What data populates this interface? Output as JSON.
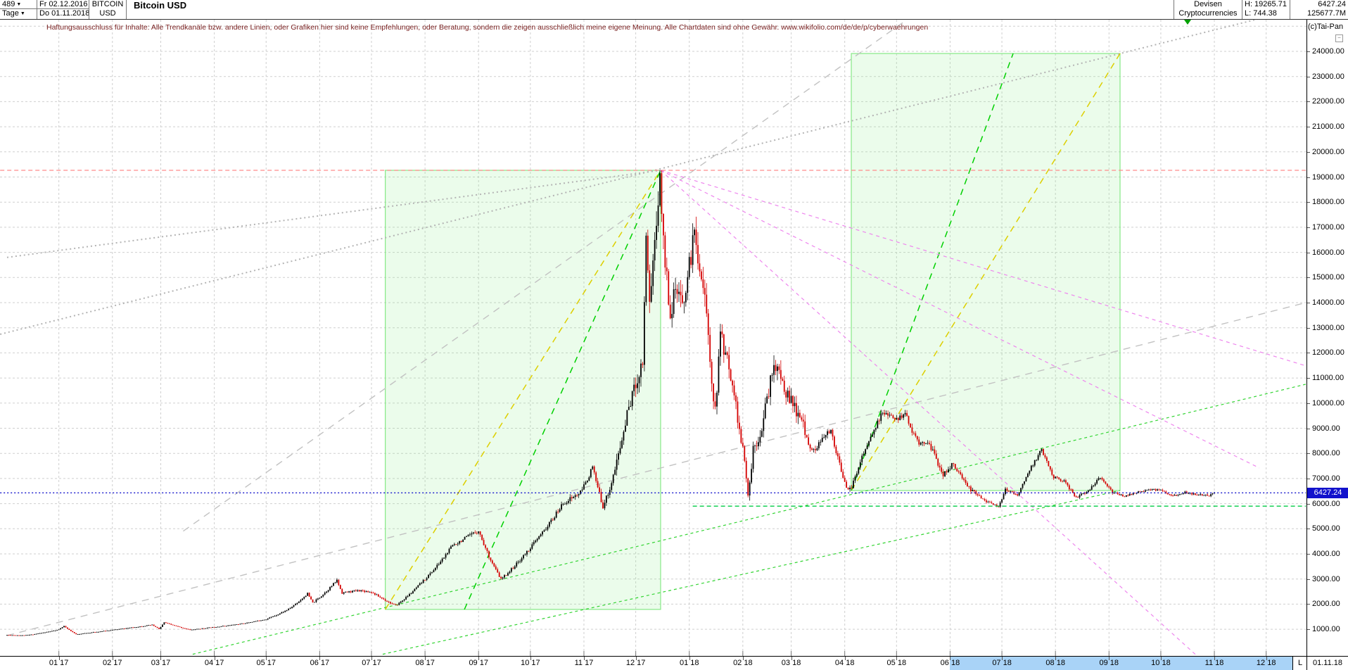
{
  "header": {
    "bars_count": "489",
    "bars_unit": "Tage",
    "date_from": "Fr 02.12.2016",
    "date_to": "Do 01.11.2018",
    "symbol_line1": "BITCOIN",
    "symbol_line2": "USD",
    "title": "Bitcoin USD",
    "market": "Devisen",
    "market2": "Cryptocurrencies",
    "high_label": "H: 19265.71",
    "low_label": "L: 744.38",
    "last_price": "6427.24",
    "volume": "125677.7M"
  },
  "disclaimer": "Haftungsausschluss für Inhalte: Alle Trendkanäle bzw. andere Linien, oder Grafiken hier sind keine Empfehlungen, oder Beratung, sondern die zeigen ausschließlich meine eigene Meinung. Alle Chartdaten sind ohne Gewähr.  www.wikifolio.com/de/de/p/cyberwaehrungen",
  "copyright": "(c)Tai-Pan",
  "collapse_icon": "−",
  "axis": {
    "price_ticks": [
      24000,
      23000,
      22000,
      21000,
      20000,
      19000,
      18000,
      17000,
      16000,
      15000,
      14000,
      13000,
      12000,
      11000,
      10000,
      9000,
      8000,
      7000,
      6000,
      5000,
      4000,
      3000,
      2000,
      1000
    ],
    "last_price_tag": "6427.24",
    "last_marker": "L",
    "last_date": "01.11.18",
    "months": [
      {
        "label": "01 17",
        "d": 30
      },
      {
        "label": "02 17",
        "d": 61
      },
      {
        "label": "03 17",
        "d": 89
      },
      {
        "label": "04 17",
        "d": 120
      },
      {
        "label": "05 17",
        "d": 150
      },
      {
        "label": "06 17",
        "d": 181
      },
      {
        "label": "07 17",
        "d": 211
      },
      {
        "label": "08 17",
        "d": 242
      },
      {
        "label": "09 17",
        "d": 273
      },
      {
        "label": "10 17",
        "d": 303
      },
      {
        "label": "11 17",
        "d": 334
      },
      {
        "label": "12 17",
        "d": 364
      },
      {
        "label": "01 18",
        "d": 395
      },
      {
        "label": "02 18",
        "d": 426
      },
      {
        "label": "03 18",
        "d": 454
      },
      {
        "label": "04 18",
        "d": 485
      },
      {
        "label": "05 18",
        "d": 515
      },
      {
        "label": "06 18",
        "d": 546
      },
      {
        "label": "07 18",
        "d": 576
      },
      {
        "label": "08 18",
        "d": 607
      },
      {
        "label": "09 18",
        "d": 638
      },
      {
        "label": "10 18",
        "d": 668
      },
      {
        "label": "11 18",
        "d": 699
      },
      {
        "label": "12 18",
        "d": 729
      }
    ]
  },
  "chart_data": {
    "type": "candlestick",
    "title": "Bitcoin USD",
    "x_start_date": "02.12.2016",
    "x_end_date": "01.11.2018",
    "bars_displayed": 489,
    "high": 19265.71,
    "low": 744.38,
    "last": 6427.24,
    "ylim": [
      0,
      25500
    ],
    "grid": true,
    "up_color": "#000000",
    "down_color": "#d40000",
    "keypoints": [
      {
        "d": 0,
        "p": 770
      },
      {
        "d": 10,
        "p": 755
      },
      {
        "d": 14,
        "p": 785
      },
      {
        "d": 29,
        "p": 965
      },
      {
        "d": 33,
        "p": 1120
      },
      {
        "d": 40,
        "p": 800
      },
      {
        "d": 60,
        "p": 965
      },
      {
        "d": 84,
        "p": 1175
      },
      {
        "d": 88,
        "p": 1010
      },
      {
        "d": 91,
        "p": 1270
      },
      {
        "d": 106,
        "p": 975
      },
      {
        "d": 119,
        "p": 1080
      },
      {
        "d": 135,
        "p": 1210
      },
      {
        "d": 150,
        "p": 1400
      },
      {
        "d": 163,
        "p": 1800
      },
      {
        "d": 174,
        "p": 2420
      },
      {
        "d": 177,
        "p": 2050
      },
      {
        "d": 191,
        "p": 2950
      },
      {
        "d": 194,
        "p": 2450
      },
      {
        "d": 204,
        "p": 2550
      },
      {
        "d": 211,
        "p": 2480
      },
      {
        "d": 225,
        "p": 1940
      },
      {
        "d": 240,
        "p": 2860
      },
      {
        "d": 258,
        "p": 4350
      },
      {
        "d": 273,
        "p": 4930
      },
      {
        "d": 286,
        "p": 2990
      },
      {
        "d": 304,
        "p": 4340
      },
      {
        "d": 322,
        "p": 6020
      },
      {
        "d": 332,
        "p": 6440
      },
      {
        "d": 339,
        "p": 7440
      },
      {
        "d": 345,
        "p": 5900
      },
      {
        "d": 349,
        "p": 6600
      },
      {
        "d": 360,
        "p": 9900
      },
      {
        "d": 368,
        "p": 11700
      },
      {
        "d": 370,
        "p": 16800
      },
      {
        "d": 372,
        "p": 14100
      },
      {
        "d": 378,
        "p": 19100
      },
      {
        "d": 380,
        "p": 16500
      },
      {
        "d": 384,
        "p": 13600
      },
      {
        "d": 387,
        "p": 14500
      },
      {
        "d": 391,
        "p": 13850
      },
      {
        "d": 398,
        "p": 16800
      },
      {
        "d": 404,
        "p": 14300
      },
      {
        "d": 410,
        "p": 9650
      },
      {
        "d": 413,
        "p": 12800
      },
      {
        "d": 420,
        "p": 10900
      },
      {
        "d": 427,
        "p": 7700
      },
      {
        "d": 429,
        "p": 6250
      },
      {
        "d": 432,
        "p": 8200
      },
      {
        "d": 436,
        "p": 8800
      },
      {
        "d": 444,
        "p": 11650
      },
      {
        "d": 452,
        "p": 10300
      },
      {
        "d": 460,
        "p": 9300
      },
      {
        "d": 466,
        "p": 8050
      },
      {
        "d": 477,
        "p": 8950
      },
      {
        "d": 483,
        "p": 7300
      },
      {
        "d": 487,
        "p": 6500
      },
      {
        "d": 489,
        "p": 6650
      },
      {
        "d": 495,
        "p": 7900
      },
      {
        "d": 502,
        "p": 8900
      },
      {
        "d": 507,
        "p": 9650
      },
      {
        "d": 514,
        "p": 9300
      },
      {
        "d": 520,
        "p": 9600
      },
      {
        "d": 527,
        "p": 8450
      },
      {
        "d": 534,
        "p": 8400
      },
      {
        "d": 542,
        "p": 7150
      },
      {
        "d": 548,
        "p": 7600
      },
      {
        "d": 555,
        "p": 6750
      },
      {
        "d": 560,
        "p": 6450
      },
      {
        "d": 567,
        "p": 6100
      },
      {
        "d": 574,
        "p": 5850
      },
      {
        "d": 578,
        "p": 6550
      },
      {
        "d": 585,
        "p": 6350
      },
      {
        "d": 592,
        "p": 7350
      },
      {
        "d": 599,
        "p": 8150
      },
      {
        "d": 606,
        "p": 7050
      },
      {
        "d": 612,
        "p": 6900
      },
      {
        "d": 619,
        "p": 6250
      },
      {
        "d": 626,
        "p": 6500
      },
      {
        "d": 633,
        "p": 7050
      },
      {
        "d": 640,
        "p": 6450
      },
      {
        "d": 647,
        "p": 6300
      },
      {
        "d": 654,
        "p": 6450
      },
      {
        "d": 661,
        "p": 6550
      },
      {
        "d": 668,
        "p": 6550
      },
      {
        "d": 675,
        "p": 6300
      },
      {
        "d": 682,
        "p": 6450
      },
      {
        "d": 689,
        "p": 6350
      },
      {
        "d": 696,
        "p": 6320
      },
      {
        "d": 699,
        "p": 6427.24
      }
    ],
    "boxes": [
      {
        "name": "rally-2017-box",
        "d1": 219,
        "d2": 378.4,
        "p_top": 19267,
        "p_bottom": 1790
      },
      {
        "name": "consolidation-2018-box",
        "d1": 488.8,
        "d2": 644.4,
        "p_top": 23916,
        "p_bottom": 6521
      }
    ],
    "trendlines": [
      {
        "name": "gray-dotted-through-peak",
        "d1": -4,
        "p1": 12740,
        "d2": 752,
        "p2": 25766,
        "color": "#b4b4b4",
        "dash": "2,4",
        "w": 2
      },
      {
        "name": "gray-dotted-to-peak",
        "d1": 0,
        "p1": 15800,
        "d2": 378.4,
        "p2": 19267,
        "color": "#b4b4b4",
        "dash": "2,4",
        "w": 2
      },
      {
        "name": "gray-channel-steep",
        "d1": 102,
        "p1": 4904,
        "d2": 521,
        "p2": 25260,
        "color": "#c2c2c2",
        "dash": "10,8",
        "w": 1.4
      },
      {
        "name": "gray-channel-shallow",
        "d1": 0,
        "p1": 750,
        "d2": 752,
        "p2": 14000,
        "color": "#c2c2c2",
        "dash": "10,8",
        "w": 1.4
      },
      {
        "name": "green-support-long",
        "d1": 107.5,
        "p1": 5,
        "d2": 752,
        "p2": 10753,
        "color": "#33d433",
        "dash": "4,4",
        "w": 1.2
      },
      {
        "name": "green-support-2",
        "d1": 217.5,
        "p1": 5,
        "d2": 644.4,
        "p2": 6521,
        "color": "#33d433",
        "dash": "4,4",
        "w": 1.2
      },
      {
        "name": "yellow-diagonal-box1",
        "d1": 219,
        "p1": 1790,
        "d2": 378.4,
        "p2": 19267,
        "color": "#ddcf00",
        "dash": "9,7",
        "w": 1.5
      },
      {
        "name": "green-diagonal-box1",
        "d1": 264.8,
        "p1": 1790,
        "d2": 378.4,
        "p2": 19267,
        "color": "#00d000",
        "dash": "9,7",
        "w": 1.5
      },
      {
        "name": "yellow-diagonal-box2",
        "d1": 488.8,
        "p1": 6521,
        "d2": 644.4,
        "p2": 23916,
        "color": "#ddcf00",
        "dash": "9,7",
        "w": 1.5
      },
      {
        "name": "green-diagonal-box2",
        "d1": 488.8,
        "p1": 6521,
        "d2": 582.5,
        "p2": 23916,
        "color": "#00d000",
        "dash": "9,7",
        "w": 1.5
      },
      {
        "name": "magenta-fan-1",
        "d1": 378.4,
        "p1": 19267,
        "d2": 688,
        "p2": 0,
        "color": "#ee86ee",
        "dash": "5,5",
        "w": 1.2
      },
      {
        "name": "magenta-fan-2",
        "d1": 378.4,
        "p1": 19267,
        "d2": 725,
        "p2": 7420,
        "color": "#ee86ee",
        "dash": "5,5",
        "w": 1.2
      },
      {
        "name": "magenta-fan-3",
        "d1": 378.4,
        "p1": 19267,
        "d2": 752,
        "p2": 11484,
        "color": "#ee86ee",
        "dash": "5,5",
        "w": 1.2
      }
    ],
    "levels": [
      {
        "name": "resistance-high",
        "p": 19265.71,
        "d1": -4,
        "d2": 752,
        "color": "#ff8a8a",
        "dash": "6,4",
        "w": 1.2,
        "above": false
      },
      {
        "name": "current-price-line",
        "p": 6427.24,
        "d1": -4,
        "d2": 752,
        "color": "#1515cc",
        "dash": "2,3",
        "w": 1.4,
        "above": true
      },
      {
        "name": "green-support-horizontal",
        "p": 5900,
        "d1": 397,
        "d2": 752,
        "color": "#00cc44",
        "dash": "6,4",
        "w": 1.3,
        "above": true
      }
    ]
  }
}
